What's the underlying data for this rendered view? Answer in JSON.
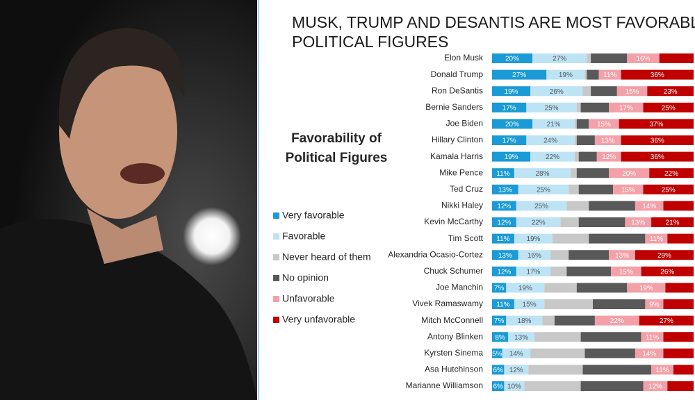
{
  "chart_data": {
    "type": "bar",
    "orientation": "horizontal",
    "stacked": true,
    "title": "MUSK, TRUMP AND DESANTIS ARE MOST FAVORABLE POLITICAL FIGURES",
    "legend_title": "Favorability of Political Figures",
    "categories": [
      "Elon Musk",
      "Donald Trump",
      "Ron DeSantis",
      "Bernie Sanders",
      "Joe Biden",
      "Hillary Clinton",
      "Kamala Harris",
      "Mike Pence",
      "Ted Cruz",
      "Nikki Haley",
      "Kevin McCarthy",
      "Tim Scott",
      "Alexandria Ocasio-Cortez",
      "Chuck Schumer",
      "Joe Manchin",
      "Vivek Ramaswamy",
      "Mitch McConnell",
      "Antony Blinken",
      "Kyrsten Sinema",
      "Asa Hutchinson",
      "Marianne Williamson"
    ],
    "xlim": [
      0,
      100
    ],
    "series": [
      {
        "name": "Very favorable",
        "color": "#1a9ad6",
        "values": [
          20,
          27,
          19,
          17,
          20,
          17,
          19,
          11,
          13,
          12,
          12,
          11,
          13,
          12,
          7,
          11,
          7,
          8,
          5,
          6,
          6
        ],
        "value_labels": [
          "20%",
          "27%",
          "19%",
          "17%",
          "20%",
          "17%",
          "19%",
          "11%",
          "13%",
          "12%",
          "12%",
          "11%",
          "13%",
          "12%",
          "7%",
          "11%",
          "7%",
          "8%",
          "5%",
          "6%",
          "6%"
        ]
      },
      {
        "name": "Favorable",
        "color": "#bde3f5",
        "values": [
          27,
          19,
          26,
          25,
          21,
          24,
          22,
          28,
          25,
          25,
          22,
          19,
          16,
          17,
          19,
          15,
          18,
          13,
          14,
          12,
          10
        ],
        "value_labels": [
          "27%",
          "19%",
          "26%",
          "25%",
          "21%",
          "24%",
          "22%",
          "28%",
          "25%",
          "25%",
          "22%",
          "19%",
          "16%",
          "17%",
          "19%",
          "15%",
          "18%",
          "13%",
          "14%",
          "12%",
          "10%"
        ]
      },
      {
        "name": "Never heard of them",
        "color": "#c8c8c8",
        "values": [
          2,
          1,
          4,
          2,
          1,
          1,
          2,
          3,
          5,
          11,
          9,
          18,
          9,
          8,
          16,
          24,
          6,
          23,
          27,
          27,
          28
        ]
      },
      {
        "name": "No opinion",
        "color": "#595959",
        "values": [
          18,
          6,
          13,
          14,
          6,
          9,
          9,
          16,
          17,
          23,
          23,
          28,
          20,
          22,
          25,
          26,
          20,
          30,
          25,
          34,
          31
        ]
      },
      {
        "name": "Unfavorable",
        "color": "#f4a0a8",
        "values": [
          16,
          11,
          15,
          17,
          15,
          13,
          12,
          20,
          15,
          14,
          13,
          11,
          13,
          15,
          19,
          9,
          22,
          11,
          14,
          11,
          12
        ],
        "value_labels": [
          "16%",
          "11%",
          "15%",
          "17%",
          "15%",
          "13%",
          "12%",
          "20%",
          "15%",
          "14%",
          "13%",
          "11%",
          "13%",
          "15%",
          "19%",
          "9%",
          "22%",
          "11%",
          "14%",
          "11%",
          "12%"
        ]
      },
      {
        "name": "Very unfavorable",
        "color": "#c00000",
        "values": [
          17,
          36,
          23,
          25,
          37,
          36,
          36,
          22,
          25,
          15,
          21,
          13,
          29,
          26,
          14,
          15,
          27,
          15,
          15,
          10,
          13
        ],
        "value_labels": [
          null,
          "36%",
          "23%",
          "25%",
          "37%",
          "36%",
          "36%",
          "22%",
          "25%",
          null,
          "21%",
          null,
          "29%",
          "26%",
          null,
          null,
          "27%",
          null,
          null,
          null,
          null
        ]
      }
    ]
  }
}
